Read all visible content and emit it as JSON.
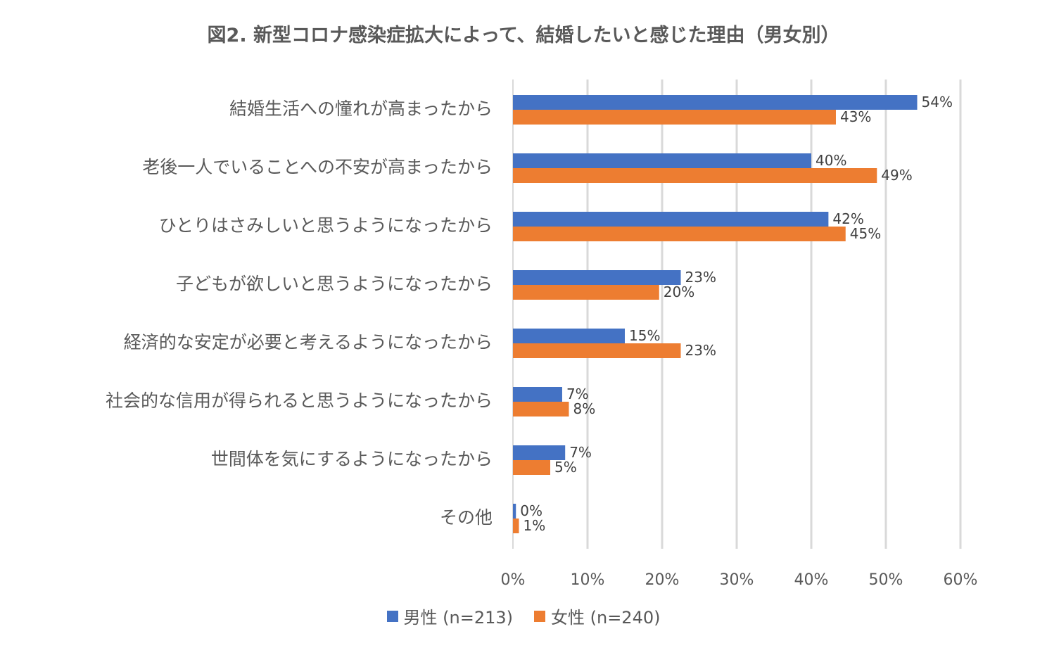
{
  "chart_data": {
    "type": "bar",
    "orientation": "horizontal",
    "title": "図2. 新型コロナ感染症拡大によって、結婚したいと感じた理由（男女別）",
    "categories": [
      "結婚生活への憧れが高まったから",
      "老後一人でいることへの不安が高まったから",
      "ひとりはさみしいと思うようになったから",
      "子どもが欲しいと思うようになったから",
      "経済的な安定が必要と考えるようになったから",
      "社会的な信用が得られると思うようになったから",
      "世間体を気にするようになったから",
      "その他"
    ],
    "series": [
      {
        "name": "男性 (n=213)",
        "color": "#4472C4",
        "values": [
          54.2,
          40.0,
          42.3,
          22.5,
          15.0,
          6.6,
          7.0,
          0.4
        ],
        "labels": [
          "54%",
          "40%",
          "42%",
          "23%",
          "15%",
          "7%",
          "7%",
          "0%"
        ]
      },
      {
        "name": "女性 (n=240)",
        "color": "#ED7D31",
        "values": [
          43.3,
          48.8,
          44.6,
          19.6,
          22.5,
          7.5,
          5.0,
          0.8
        ],
        "labels": [
          "43%",
          "49%",
          "45%",
          "20%",
          "23%",
          "8%",
          "5%",
          "1%"
        ]
      }
    ],
    "xlim": [
      0,
      60
    ],
    "xticks": [
      "0%",
      "10%",
      "20%",
      "30%",
      "40%",
      "50%",
      "60%"
    ],
    "grid": true,
    "legend_position": "bottom"
  }
}
